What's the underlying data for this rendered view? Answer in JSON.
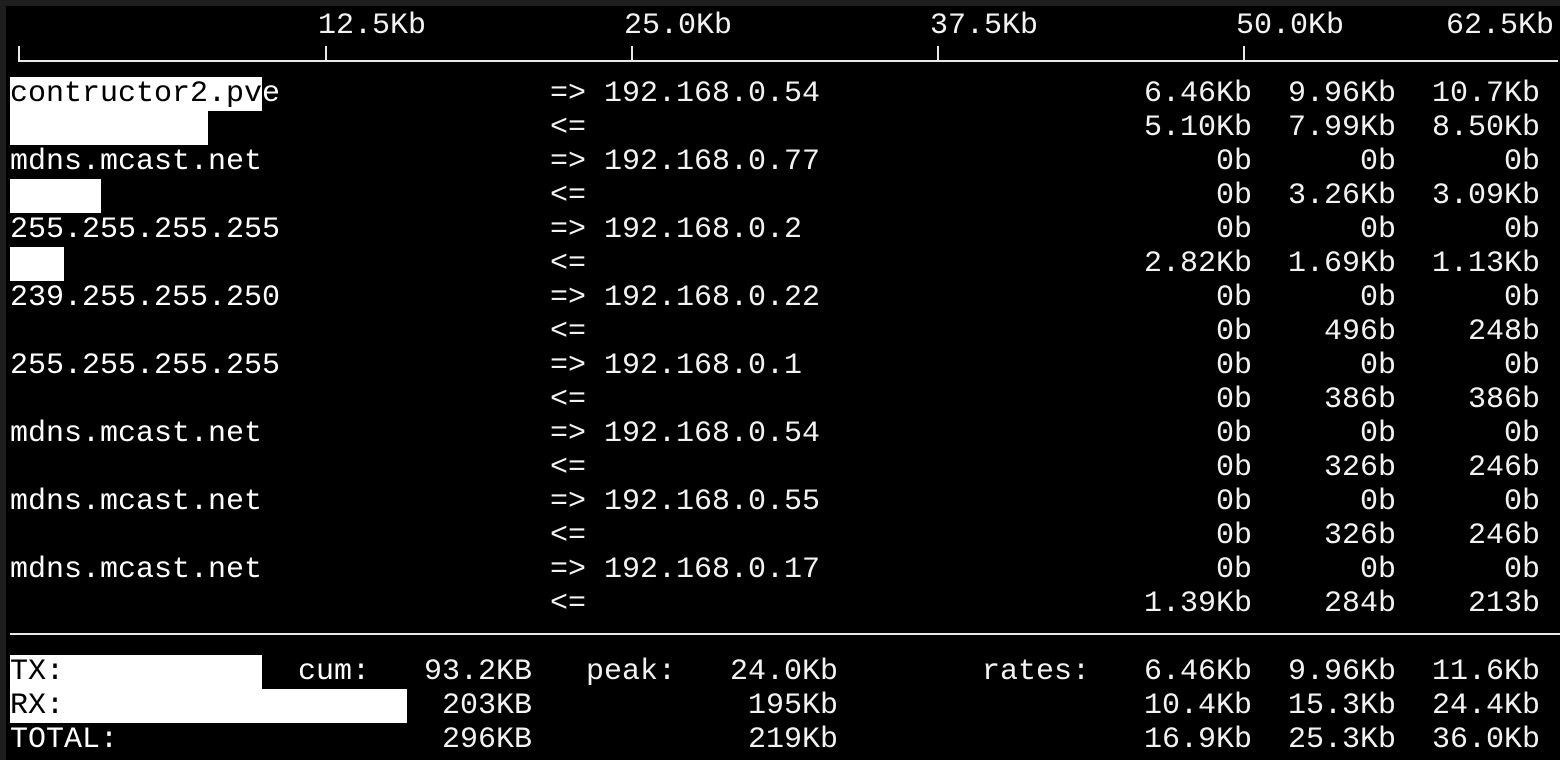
{
  "colors": {
    "background": "#000000",
    "foreground": "#f2f2f2",
    "bar": "#ffffff",
    "window_frame": "#1e1e1e"
  },
  "scale": {
    "unit_max_kb": 62.5,
    "ticks": [
      {
        "label": "12.5Kb",
        "kb": 12.5
      },
      {
        "label": "25.0Kb",
        "kb": 25.0
      },
      {
        "label": "37.5Kb",
        "kb": 37.5
      },
      {
        "label": "50.0Kb",
        "kb": 50.0
      },
      {
        "label": "62.5Kb",
        "kb": 62.5
      }
    ]
  },
  "connections": [
    {
      "host": "contructor2.pve",
      "remote": "192.168.0.54",
      "send_arrow": "=>",
      "recv_arrow": "<=",
      "send": [
        "6.46Kb",
        "9.96Kb",
        "10.7Kb"
      ],
      "recv": [
        "5.10Kb",
        "7.99Kb",
        "8.50Kb"
      ],
      "send_bar_kb": 10.3,
      "recv_bar_kb": 8.1
    },
    {
      "host": "mdns.mcast.net",
      "remote": "192.168.0.77",
      "send_arrow": "=>",
      "recv_arrow": "<=",
      "send": [
        "0b",
        "0b",
        "0b"
      ],
      "recv": [
        "0b",
        "3.26Kb",
        "3.09Kb"
      ],
      "send_bar_kb": 0,
      "recv_bar_kb": 3.7
    },
    {
      "host": "255.255.255.255",
      "remote": "192.168.0.2",
      "send_arrow": "=>",
      "recv_arrow": "<=",
      "send": [
        "0b",
        "0b",
        "0b"
      ],
      "recv": [
        "2.82Kb",
        "1.69Kb",
        "1.13Kb"
      ],
      "send_bar_kb": 0,
      "recv_bar_kb": 2.2
    },
    {
      "host": "239.255.255.250",
      "remote": "192.168.0.22",
      "send_arrow": "=>",
      "recv_arrow": "<=",
      "send": [
        "0b",
        "0b",
        "0b"
      ],
      "recv": [
        "0b",
        "496b",
        "248b"
      ],
      "send_bar_kb": 0,
      "recv_bar_kb": 0
    },
    {
      "host": "255.255.255.255",
      "remote": "192.168.0.1",
      "send_arrow": "=>",
      "recv_arrow": "<=",
      "send": [
        "0b",
        "0b",
        "0b"
      ],
      "recv": [
        "0b",
        "386b",
        "386b"
      ],
      "send_bar_kb": 0,
      "recv_bar_kb": 0
    },
    {
      "host": "mdns.mcast.net",
      "remote": "192.168.0.54",
      "send_arrow": "=>",
      "recv_arrow": "<=",
      "send": [
        "0b",
        "0b",
        "0b"
      ],
      "recv": [
        "0b",
        "326b",
        "246b"
      ],
      "send_bar_kb": 0,
      "recv_bar_kb": 0
    },
    {
      "host": "mdns.mcast.net",
      "remote": "192.168.0.55",
      "send_arrow": "=>",
      "recv_arrow": "<=",
      "send": [
        "0b",
        "0b",
        "0b"
      ],
      "recv": [
        "0b",
        "326b",
        "246b"
      ],
      "send_bar_kb": 0,
      "recv_bar_kb": 0
    },
    {
      "host": "mdns.mcast.net",
      "remote": "192.168.0.17",
      "send_arrow": "=>",
      "recv_arrow": "<=",
      "send": [
        "0b",
        "0b",
        "0b"
      ],
      "recv": [
        "1.39Kb",
        "284b",
        "213b"
      ],
      "send_bar_kb": 0,
      "recv_bar_kb": 0
    }
  ],
  "totals": {
    "cum_label": "cum:",
    "peak_label": "peak:",
    "rates_label": "rates:",
    "rows": [
      {
        "label": "TX:",
        "cum": "93.2KB",
        "peak": "24.0Kb",
        "rates": [
          "6.46Kb",
          "9.96Kb",
          "11.6Kb"
        ],
        "bar_kb": 10.3
      },
      {
        "label": "RX:",
        "cum": "203KB",
        "peak": "195Kb",
        "rates": [
          "10.4Kb",
          "15.3Kb",
          "24.4Kb"
        ],
        "bar_kb": 16.2
      },
      {
        "label": "TOTAL:",
        "cum": "296KB",
        "peak": "219Kb",
        "rates": [
          "16.9Kb",
          "25.3Kb",
          "36.0Kb"
        ],
        "bar_kb": 0
      }
    ]
  }
}
